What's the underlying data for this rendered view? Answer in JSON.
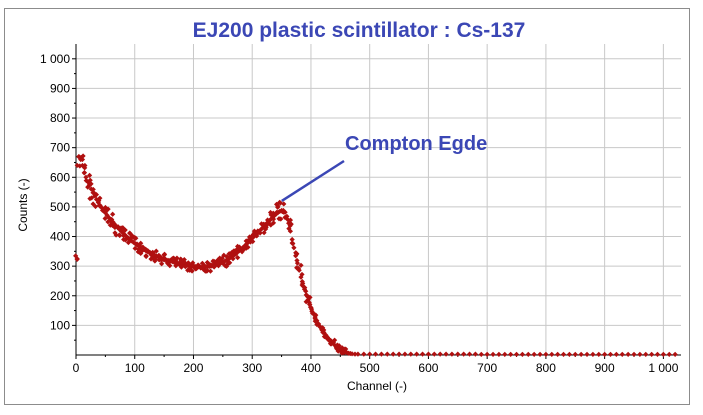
{
  "chart_data": {
    "type": "scatter",
    "title": "EJ200 plastic scintillator : Cs-137",
    "xlabel": "Channel (-)",
    "ylabel": "Counts (-)",
    "xlim": [
      0,
      1030
    ],
    "ylim": [
      0,
      1050
    ],
    "x_ticks": [
      "0",
      "100",
      "200",
      "300",
      "400",
      "500",
      "600",
      "700",
      "800",
      "900",
      "1 000"
    ],
    "y_ticks": [
      "100",
      "200",
      "300",
      "400",
      "500",
      "600",
      "700",
      "800",
      "900",
      "1 000"
    ],
    "grid": true,
    "marker_color": "#b01010",
    "annotation_color": "#3b47b5",
    "annotation": {
      "text": "Compton Egde",
      "points_to": [
        352,
        520
      ]
    },
    "series": [
      {
        "marker": "diamond",
        "points": [
          [
            2,
            325
          ],
          [
            5,
            670
          ],
          [
            8,
            660
          ],
          [
            11,
            640
          ],
          [
            14,
            615
          ],
          [
            17,
            600
          ],
          [
            20,
            585
          ],
          [
            23,
            575
          ],
          [
            26,
            560
          ],
          [
            29,
            548
          ],
          [
            32,
            537
          ],
          [
            35,
            525
          ],
          [
            38,
            515
          ],
          [
            41,
            505
          ],
          [
            44,
            497
          ],
          [
            47,
            488
          ],
          [
            50,
            480
          ],
          [
            53,
            472
          ],
          [
            56,
            464
          ],
          [
            59,
            457
          ],
          [
            62,
            450
          ],
          [
            65,
            443
          ],
          [
            68,
            436
          ],
          [
            71,
            430
          ],
          [
            74,
            424
          ],
          [
            77,
            418
          ],
          [
            80,
            412
          ],
          [
            83,
            406
          ],
          [
            86,
            400
          ],
          [
            89,
            395
          ],
          [
            92,
            390
          ],
          [
            95,
            385
          ],
          [
            98,
            380
          ],
          [
            101,
            376
          ],
          [
            104,
            371
          ],
          [
            107,
            367
          ],
          [
            110,
            363
          ],
          [
            113,
            359
          ],
          [
            116,
            356
          ],
          [
            119,
            352
          ],
          [
            122,
            349
          ],
          [
            125,
            346
          ],
          [
            128,
            343
          ],
          [
            131,
            340
          ],
          [
            134,
            337
          ],
          [
            137,
            334
          ],
          [
            140,
            332
          ],
          [
            143,
            329
          ],
          [
            146,
            327
          ],
          [
            149,
            325
          ],
          [
            152,
            322
          ],
          [
            155,
            320
          ],
          [
            158,
            318
          ],
          [
            161,
            317
          ],
          [
            164,
            315
          ],
          [
            167,
            313
          ],
          [
            170,
            311
          ],
          [
            173,
            310
          ],
          [
            176,
            308
          ],
          [
            179,
            307
          ],
          [
            182,
            305
          ],
          [
            185,
            304
          ],
          [
            188,
            303
          ],
          [
            191,
            302
          ],
          [
            194,
            301
          ],
          [
            197,
            300
          ],
          [
            200,
            299
          ],
          [
            203,
            299
          ],
          [
            206,
            298
          ],
          [
            209,
            298
          ],
          [
            212,
            297
          ],
          [
            215,
            297
          ],
          [
            218,
            297
          ],
          [
            221,
            298
          ],
          [
            224,
            298
          ],
          [
            227,
            299
          ],
          [
            230,
            300
          ],
          [
            233,
            301
          ],
          [
            236,
            303
          ],
          [
            239,
            305
          ],
          [
            242,
            307
          ],
          [
            245,
            309
          ],
          [
            248,
            312
          ],
          [
            251,
            315
          ],
          [
            254,
            318
          ],
          [
            257,
            321
          ],
          [
            260,
            325
          ],
          [
            263,
            329
          ],
          [
            266,
            333
          ],
          [
            269,
            337
          ],
          [
            272,
            342
          ],
          [
            275,
            347
          ],
          [
            278,
            352
          ],
          [
            281,
            357
          ],
          [
            284,
            362
          ],
          [
            287,
            368
          ],
          [
            290,
            374
          ],
          [
            293,
            380
          ],
          [
            296,
            386
          ],
          [
            299,
            392
          ],
          [
            302,
            398
          ],
          [
            305,
            404
          ],
          [
            308,
            410
          ],
          [
            311,
            416
          ],
          [
            314,
            422
          ],
          [
            317,
            428
          ],
          [
            320,
            435
          ],
          [
            323,
            441
          ],
          [
            326,
            447
          ],
          [
            329,
            453
          ],
          [
            332,
            459
          ],
          [
            335,
            465
          ],
          [
            338,
            471
          ],
          [
            341,
            476
          ],
          [
            344,
            481
          ],
          [
            347,
            485
          ],
          [
            350,
            488
          ],
          [
            353,
            488
          ],
          [
            356,
            482
          ],
          [
            359,
            468
          ],
          [
            362,
            445
          ],
          [
            365,
            418
          ],
          [
            368,
            390
          ],
          [
            371,
            362
          ],
          [
            374,
            335
          ],
          [
            377,
            310
          ],
          [
            380,
            286
          ],
          [
            383,
            263
          ],
          [
            386,
            242
          ],
          [
            389,
            222
          ],
          [
            392,
            203
          ],
          [
            395,
            186
          ],
          [
            398,
            170
          ],
          [
            401,
            155
          ],
          [
            404,
            141
          ],
          [
            407,
            128
          ],
          [
            410,
            116
          ],
          [
            413,
            105
          ],
          [
            416,
            95
          ],
          [
            419,
            85
          ],
          [
            422,
            76
          ],
          [
            425,
            68
          ],
          [
            428,
            60
          ],
          [
            431,
            53
          ],
          [
            434,
            46
          ],
          [
            437,
            40
          ],
          [
            440,
            34
          ],
          [
            443,
            29
          ],
          [
            446,
            24
          ],
          [
            449,
            20
          ],
          [
            452,
            16
          ],
          [
            455,
            13
          ],
          [
            458,
            10
          ],
          [
            461,
            8
          ],
          [
            464,
            6
          ],
          [
            467,
            5
          ],
          [
            470,
            4
          ],
          [
            475,
            3
          ],
          [
            480,
            3
          ],
          [
            490,
            3
          ],
          [
            500,
            3
          ],
          [
            510,
            3
          ],
          [
            520,
            3
          ],
          [
            530,
            3
          ],
          [
            540,
            3
          ],
          [
            550,
            3
          ],
          [
            560,
            3
          ],
          [
            570,
            3
          ],
          [
            580,
            3
          ],
          [
            590,
            3
          ],
          [
            600,
            3
          ],
          [
            610,
            3
          ],
          [
            620,
            3
          ],
          [
            630,
            3
          ],
          [
            640,
            3
          ],
          [
            650,
            3
          ],
          [
            660,
            3
          ],
          [
            670,
            3
          ],
          [
            680,
            3
          ],
          [
            690,
            2
          ],
          [
            700,
            2
          ],
          [
            710,
            2
          ],
          [
            720,
            2
          ],
          [
            730,
            2
          ],
          [
            740,
            2
          ],
          [
            750,
            2
          ],
          [
            760,
            2
          ],
          [
            770,
            2
          ],
          [
            780,
            2
          ],
          [
            790,
            2
          ],
          [
            800,
            2
          ],
          [
            810,
            2
          ],
          [
            820,
            2
          ],
          [
            830,
            2
          ],
          [
            840,
            2
          ],
          [
            850,
            2
          ],
          [
            860,
            2
          ],
          [
            870,
            2
          ],
          [
            880,
            2
          ],
          [
            890,
            2
          ],
          [
            900,
            2
          ],
          [
            910,
            2
          ],
          [
            920,
            2
          ],
          [
            930,
            2
          ],
          [
            940,
            2
          ],
          [
            950,
            2
          ],
          [
            960,
            2
          ],
          [
            970,
            2
          ],
          [
            980,
            2
          ],
          [
            990,
            2
          ],
          [
            1000,
            2
          ],
          [
            1010,
            2
          ],
          [
            1020,
            2
          ]
        ]
      }
    ]
  }
}
